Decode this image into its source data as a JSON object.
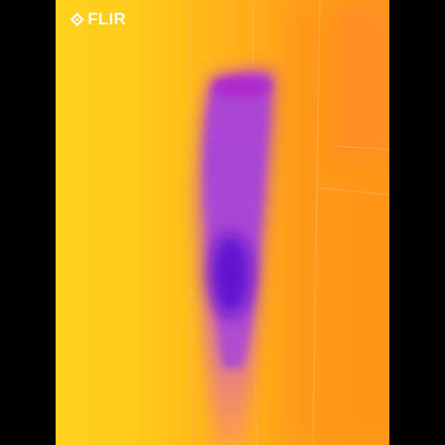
{
  "brand": {
    "name": "FLIR",
    "logo_icon": "flir-diamond-logo",
    "logo_color": "#ffffff"
  },
  "image": {
    "description_free": true,
    "palette": [
      "#ffd21f",
      "#ffb41a",
      "#ff9a18",
      "#e06fb0",
      "#8a2fd8",
      "#5a10d0"
    ]
  }
}
